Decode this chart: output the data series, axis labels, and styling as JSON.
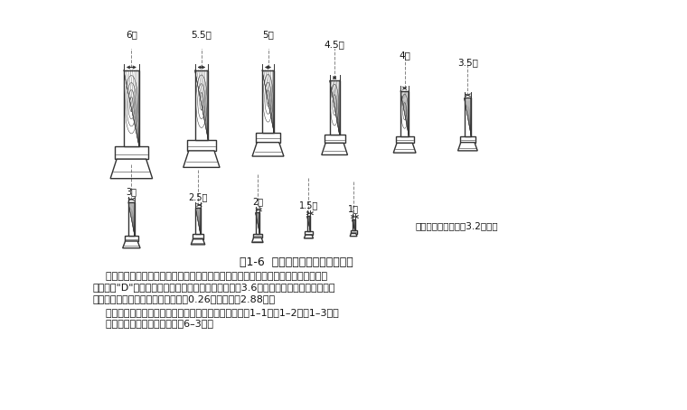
{
  "title": "图1-6  清式建筑斗口的十一个等级",
  "caption_note": "（清营造尺每寸等于3.2厘米）",
  "paragraph1_line1": "    小式建筑模数是由设计人员确定的，通常是在确定了开间尺寸或柱高尺寸以后，才确",
  "paragraph1_line2": "定檐柱径\"D\"的具体尺寸。如果定一幢建筑明间面阔为3.6米，则可根据面阔、柱高与柱",
  "paragraph1_line3": "径之间的比例关系，求出柱径尺寸为0.26米，柱高为2.88米。",
  "paragraph2": "    大、小式建筑各部构件尺寸，详见构件权衡尺寸表（表1–1，表1–2，表1–3）。",
  "paragraph3": "    （斗栱权衡尺寸表见第六章表6–3）。",
  "row1_labels": [
    "6寸",
    "5.5寸",
    "5寸",
    "4.5寸",
    "4寸",
    "3.5寸"
  ],
  "row2_labels": [
    "3寸",
    "2.5寸",
    "2寸",
    "1.5寸",
    "1寸"
  ],
  "bg_color": "#ffffff",
  "line_color": "#333333",
  "text_color": "#111111"
}
